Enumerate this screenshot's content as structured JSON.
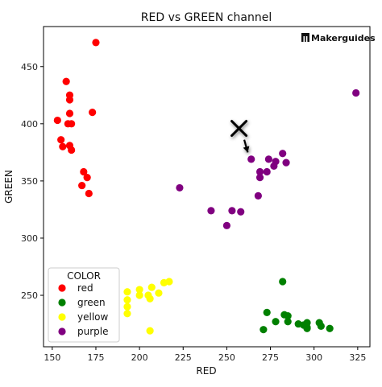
{
  "chart_data": {
    "type": "scatter",
    "title": "RED vs GREEN channel",
    "xlabel": "RED",
    "ylabel": "GREEN",
    "xlim": [
      145,
      332
    ],
    "ylim": [
      205,
      485
    ],
    "xticks": [
      150,
      175,
      200,
      225,
      250,
      275,
      300,
      325
    ],
    "yticks": [
      250,
      300,
      350,
      400,
      450
    ],
    "grid": false,
    "legend": {
      "title": "COLOR",
      "placement": "bottom-left"
    },
    "series": [
      {
        "name": "red",
        "color": "#ff0000",
        "points": [
          [
            175,
            471
          ],
          [
            158,
            437
          ],
          [
            160,
            425
          ],
          [
            160,
            421
          ],
          [
            160,
            409
          ],
          [
            173,
            410
          ],
          [
            153,
            403
          ],
          [
            159,
            400
          ],
          [
            161,
            400
          ],
          [
            155,
            386
          ],
          [
            156,
            380
          ],
          [
            160,
            381
          ],
          [
            161,
            377
          ],
          [
            168,
            358
          ],
          [
            170,
            353
          ],
          [
            167,
            346
          ],
          [
            171,
            339
          ]
        ]
      },
      {
        "name": "green",
        "color": "#008000",
        "points": [
          [
            282,
            262
          ],
          [
            273,
            235
          ],
          [
            283,
            233
          ],
          [
            285,
            232
          ],
          [
            278,
            227
          ],
          [
            285,
            227
          ],
          [
            291,
            225
          ],
          [
            294,
            224
          ],
          [
            296,
            226
          ],
          [
            296,
            222
          ],
          [
            303,
            226
          ],
          [
            304,
            223
          ],
          [
            309,
            221
          ],
          [
            296,
            221
          ],
          [
            271,
            220
          ]
        ]
      },
      {
        "name": "yellow",
        "color": "#ffff00",
        "points": [
          [
            193,
            253
          ],
          [
            193,
            246
          ],
          [
            193,
            240
          ],
          [
            193,
            234
          ],
          [
            200,
            255
          ],
          [
            200,
            250
          ],
          [
            205,
            250
          ],
          [
            207,
            257
          ],
          [
            206,
            247
          ],
          [
            211,
            252
          ],
          [
            214,
            261
          ],
          [
            217,
            262
          ],
          [
            206,
            219
          ]
        ]
      },
      {
        "name": "purple",
        "color": "#800080",
        "points": [
          [
            324,
            427
          ],
          [
            282,
            374
          ],
          [
            274,
            369
          ],
          [
            278,
            367
          ],
          [
            264,
            369
          ],
          [
            284,
            366
          ],
          [
            277,
            363
          ],
          [
            273,
            358
          ],
          [
            269,
            358
          ],
          [
            269,
            353
          ],
          [
            223,
            344
          ],
          [
            268,
            337
          ],
          [
            241,
            324
          ],
          [
            253,
            324
          ],
          [
            258,
            323
          ],
          [
            250,
            311
          ]
        ]
      }
    ],
    "annotations": [
      {
        "type": "x-marker",
        "x": 257,
        "y": 396
      },
      {
        "type": "arrow",
        "from": [
          260,
          386
        ],
        "to": [
          262,
          375
        ]
      }
    ]
  },
  "brand": {
    "logo_icon": "maker-logo-icon",
    "text": "Makerguides"
  }
}
